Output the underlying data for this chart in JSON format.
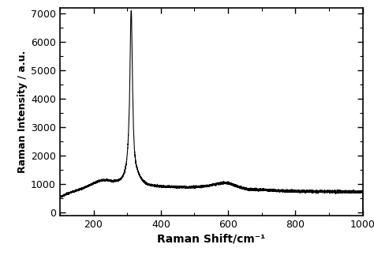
{
  "xlabel": "Raman Shift/cm⁻¹",
  "ylabel": "Raman Intensity / a.u.",
  "xlim": [
    100,
    1000
  ],
  "ylim": [
    -100,
    7200
  ],
  "xticks": [
    200,
    400,
    600,
    800,
    1000
  ],
  "yticks": [
    0,
    1000,
    2000,
    3000,
    4000,
    5000,
    6000,
    7000
  ],
  "line_color": "#000000",
  "line_width": 0.8,
  "bg_color": "#ffffff"
}
